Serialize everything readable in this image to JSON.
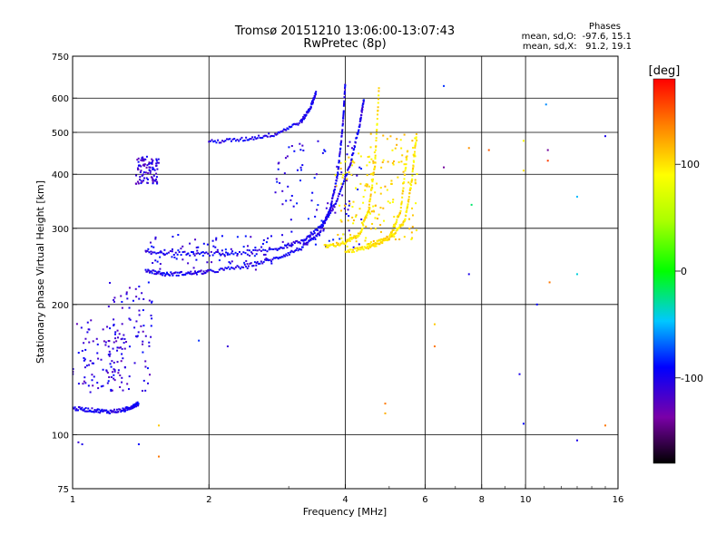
{
  "chart_data": {
    "type": "scatter",
    "title": "Tromsø 20151210 13:06:00-13:07:43",
    "subtitle": "RwPretec (8p)",
    "xlabel": "Frequency [MHz]",
    "ylabel": "Stationary phase Virtual Height [km]",
    "x_scale": "log",
    "y_scale": "log",
    "xlim": [
      1,
      16
    ],
    "ylim": [
      75,
      750
    ],
    "x_ticks": [
      1,
      2,
      4,
      6,
      8,
      10,
      16
    ],
    "y_ticks": [
      75,
      100,
      200,
      300,
      400,
      500,
      600,
      750
    ],
    "x_grid": [
      2,
      4,
      6,
      8,
      10
    ],
    "y_grid": [
      100,
      200,
      300,
      400,
      500,
      600
    ],
    "grid": true,
    "stats": {
      "heading": "Phases",
      "o_line": "mean, sd,O:  -97.6, 15.1",
      "x_line": "mean, sd,X:   91.2, 19.1"
    },
    "colorbar": {
      "label": "[deg]",
      "range": [
        -180,
        180
      ],
      "ticks": [
        100,
        0,
        -100
      ],
      "tick_labels": [
        "100",
        "0",
        "-100"
      ],
      "colormap": "rainbow"
    },
    "traces": [
      {
        "mode": "O",
        "x": [
          1.0,
          1.1,
          1.2,
          1.3,
          1.35,
          1.4
        ],
        "y": [
          115,
          114,
          113,
          114,
          116,
          118
        ]
      },
      {
        "mode": "O",
        "x": [
          1.45,
          1.6,
          1.8,
          2.0,
          2.4,
          2.8,
          3.2,
          3.5,
          3.7,
          3.85,
          3.95,
          4.0
        ],
        "y": [
          240,
          235,
          236,
          238,
          245,
          255,
          270,
          290,
          330,
          400,
          520,
          650
        ]
      },
      {
        "mode": "O",
        "x": [
          1.45,
          1.8,
          2.2,
          2.8,
          3.2,
          3.5,
          3.8,
          4.1,
          4.3,
          4.4
        ],
        "y": [
          265,
          262,
          262,
          268,
          280,
          300,
          340,
          420,
          520,
          600
        ]
      },
      {
        "mode": "O",
        "x": [
          2.0,
          2.4,
          2.8,
          3.2,
          3.35,
          3.45
        ],
        "y": [
          475,
          482,
          495,
          530,
          570,
          620
        ]
      },
      {
        "mode": "X",
        "x": [
          3.6,
          4.0,
          4.3,
          4.5,
          4.65,
          4.75
        ],
        "y": [
          272,
          278,
          290,
          330,
          420,
          640
        ]
      },
      {
        "mode": "X",
        "x": [
          4.0,
          4.5,
          5.0,
          5.3,
          5.5
        ],
        "y": [
          265,
          270,
          285,
          330,
          460
        ]
      },
      {
        "mode": "X",
        "x": [
          4.5,
          5.0,
          5.4,
          5.6,
          5.75
        ],
        "y": [
          275,
          285,
          310,
          380,
          500
        ]
      }
    ],
    "scatter_regions": [
      {
        "x": [
          1.0,
          1.3
        ],
        "y": [
          125,
          185
        ],
        "phase": -110
      },
      {
        "x": [
          1.2,
          1.5
        ],
        "y": [
          125,
          230
        ],
        "phase": -105
      },
      {
        "x": [
          1.38,
          1.55
        ],
        "y": [
          380,
          440
        ],
        "phase": -110
      },
      {
        "x": [
          1.45,
          2.8
        ],
        "y": [
          240,
          290
        ],
        "phase": -100
      },
      {
        "x": [
          2.8,
          4.4
        ],
        "y": [
          270,
          480
        ],
        "phase": -100
      },
      {
        "x": [
          3.8,
          4.8
        ],
        "y": [
          270,
          450
        ],
        "phase": 100
      },
      {
        "x": [
          4.5,
          5.8
        ],
        "y": [
          280,
          500
        ],
        "phase": 105
      }
    ],
    "isolated_points": [
      {
        "x": 1.03,
        "y": 96,
        "phase": -110
      },
      {
        "x": 1.05,
        "y": 95,
        "phase": -100
      },
      {
        "x": 1.4,
        "y": 95,
        "phase": -90
      },
      {
        "x": 1.55,
        "y": 89,
        "phase": 140
      },
      {
        "x": 1.55,
        "y": 105,
        "phase": 110
      },
      {
        "x": 1.9,
        "y": 165,
        "phase": -80
      },
      {
        "x": 2.2,
        "y": 160,
        "phase": -110
      },
      {
        "x": 4.9,
        "y": 112,
        "phase": 120
      },
      {
        "x": 4.9,
        "y": 118,
        "phase": 140
      },
      {
        "x": 6.3,
        "y": 160,
        "phase": 140
      },
      {
        "x": 6.3,
        "y": 180,
        "phase": 110
      },
      {
        "x": 6.6,
        "y": 640,
        "phase": -80
      },
      {
        "x": 6.6,
        "y": 415,
        "phase": -140
      },
      {
        "x": 7.5,
        "y": 235,
        "phase": -100
      },
      {
        "x": 7.5,
        "y": 460,
        "phase": 130
      },
      {
        "x": 7.6,
        "y": 340,
        "phase": -20
      },
      {
        "x": 8.3,
        "y": 455,
        "phase": 150
      },
      {
        "x": 9.7,
        "y": 138,
        "phase": -100
      },
      {
        "x": 9.9,
        "y": 106,
        "phase": -90
      },
      {
        "x": 9.9,
        "y": 408,
        "phase": 100
      },
      {
        "x": 9.9,
        "y": 478,
        "phase": 90
      },
      {
        "x": 10.6,
        "y": 200,
        "phase": -90
      },
      {
        "x": 11.1,
        "y": 580,
        "phase": -60
      },
      {
        "x": 11.2,
        "y": 455,
        "phase": -140
      },
      {
        "x": 11.2,
        "y": 430,
        "phase": 160
      },
      {
        "x": 11.3,
        "y": 225,
        "phase": 140
      },
      {
        "x": 13.0,
        "y": 235,
        "phase": -40
      },
      {
        "x": 13.0,
        "y": 355,
        "phase": -50
      },
      {
        "x": 13.0,
        "y": 97,
        "phase": -100
      },
      {
        "x": 15.0,
        "y": 490,
        "phase": -100
      },
      {
        "x": 15.0,
        "y": 105,
        "phase": 140
      }
    ]
  }
}
